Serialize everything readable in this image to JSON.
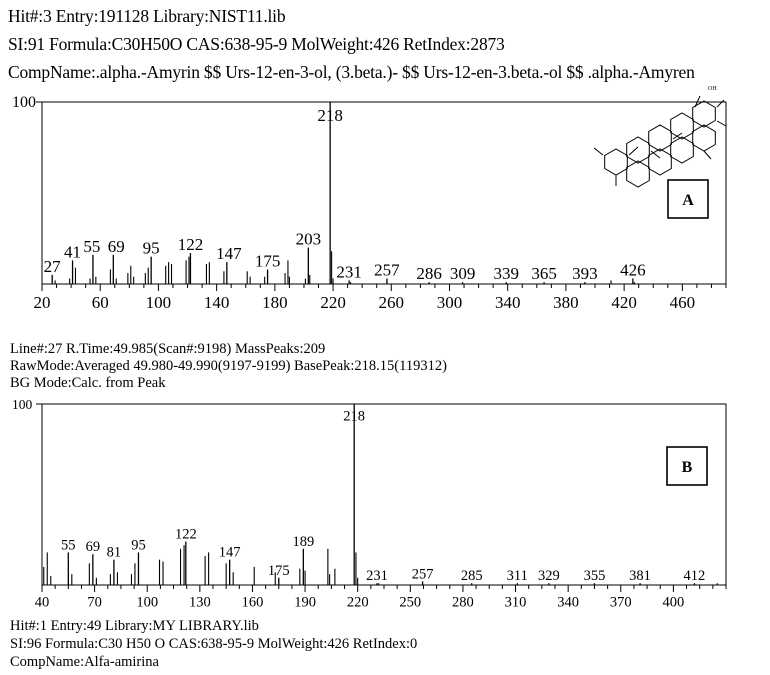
{
  "header_top": {
    "line1": "Hit#:3  Entry:191128  Library:NIST11.lib",
    "line2": "SI:91  Formula:C30H50O  CAS:638-95-9  MolWeight:426  RetIndex:2873",
    "line3": "CompName:.alpha.-Amyrin $$ Urs-12-en-3-ol, (3.beta.)- $$ Urs-12-en-3.beta.-ol $$ .alpha.-Amyren"
  },
  "header_mid": {
    "line1": "Line#:27   R.Time:49.985(Scan#:9198)   MassPeaks:209",
    "line2": "RawMode:Averaged 49.980-49.990(9197-9199) BasePeak:218.15(119312)",
    "line3": "BG Mode:Calc. from Peak"
  },
  "footer": {
    "line1": "Hit#:1  Entry:49  Library:MY LIBRARY.lib",
    "line2": "SI:96  Formula:C30 H50 O  CAS:638-95-9  MolWeight:426  RetIndex:0",
    "line3": "CompName:Alfa-amirina"
  },
  "chart_data": [
    {
      "type": "bar",
      "panel_label": "A",
      "structure_label": "OH",
      "x_ticks": [
        20,
        60,
        100,
        140,
        180,
        220,
        260,
        300,
        340,
        380,
        420,
        460
      ],
      "xlim": [
        20,
        490
      ],
      "ylim": [
        0,
        100
      ],
      "y_tick_label": "100",
      "labeled_peaks": [
        {
          "mz": 27,
          "intensity": 5,
          "label": "27"
        },
        {
          "mz": 41,
          "intensity": 13,
          "label": "41"
        },
        {
          "mz": 55,
          "intensity": 16,
          "label": "55"
        },
        {
          "mz": 69,
          "intensity": 16,
          "label": "69"
        },
        {
          "mz": 95,
          "intensity": 15,
          "label": "95"
        },
        {
          "mz": 122,
          "intensity": 17,
          "label": "122"
        },
        {
          "mz": 147,
          "intensity": 12,
          "label": "147"
        },
        {
          "mz": 175,
          "intensity": 8,
          "label": "175"
        },
        {
          "mz": 203,
          "intensity": 20,
          "label": "203"
        },
        {
          "mz": 218,
          "intensity": 100,
          "label": "218"
        },
        {
          "mz": 231,
          "intensity": 2,
          "label": "231"
        },
        {
          "mz": 257,
          "intensity": 3,
          "label": "257"
        },
        {
          "mz": 286,
          "intensity": 1,
          "label": "286"
        },
        {
          "mz": 309,
          "intensity": 1,
          "label": "309"
        },
        {
          "mz": 339,
          "intensity": 1,
          "label": "339"
        },
        {
          "mz": 365,
          "intensity": 1,
          "label": "365"
        },
        {
          "mz": 393,
          "intensity": 1,
          "label": "393"
        },
        {
          "mz": 426,
          "intensity": 3,
          "label": "426"
        }
      ],
      "minor_peaks": [
        {
          "mz": 29,
          "intensity": 2
        },
        {
          "mz": 39,
          "intensity": 3
        },
        {
          "mz": 43,
          "intensity": 9
        },
        {
          "mz": 53,
          "intensity": 3
        },
        {
          "mz": 57,
          "intensity": 4
        },
        {
          "mz": 67,
          "intensity": 8
        },
        {
          "mz": 71,
          "intensity": 3
        },
        {
          "mz": 79,
          "intensity": 6
        },
        {
          "mz": 81,
          "intensity": 10
        },
        {
          "mz": 83,
          "intensity": 4
        },
        {
          "mz": 91,
          "intensity": 6
        },
        {
          "mz": 93,
          "intensity": 9
        },
        {
          "mz": 105,
          "intensity": 10
        },
        {
          "mz": 107,
          "intensity": 12
        },
        {
          "mz": 109,
          "intensity": 11
        },
        {
          "mz": 119,
          "intensity": 13
        },
        {
          "mz": 121,
          "intensity": 15
        },
        {
          "mz": 133,
          "intensity": 11
        },
        {
          "mz": 135,
          "intensity": 12
        },
        {
          "mz": 145,
          "intensity": 7
        },
        {
          "mz": 161,
          "intensity": 7
        },
        {
          "mz": 163,
          "intensity": 4
        },
        {
          "mz": 173,
          "intensity": 4
        },
        {
          "mz": 187,
          "intensity": 6
        },
        {
          "mz": 189,
          "intensity": 13
        },
        {
          "mz": 190,
          "intensity": 4
        },
        {
          "mz": 201,
          "intensity": 3
        },
        {
          "mz": 204,
          "intensity": 5
        },
        {
          "mz": 219,
          "intensity": 18
        },
        {
          "mz": 220,
          "intensity": 3
        },
        {
          "mz": 232,
          "intensity": 1
        },
        {
          "mz": 411,
          "intensity": 2
        },
        {
          "mz": 427,
          "intensity": 1
        }
      ]
    },
    {
      "type": "bar",
      "panel_label": "B",
      "x_ticks": [
        40,
        70,
        100,
        130,
        160,
        190,
        220,
        250,
        280,
        310,
        340,
        370,
        400
      ],
      "xlim": [
        40,
        430
      ],
      "ylim": [
        0,
        100
      ],
      "y_tick_label": "100",
      "labeled_peaks": [
        {
          "mz": 55,
          "intensity": 18,
          "label": "55"
        },
        {
          "mz": 69,
          "intensity": 17,
          "label": "69"
        },
        {
          "mz": 81,
          "intensity": 14,
          "label": "81"
        },
        {
          "mz": 95,
          "intensity": 18,
          "label": "95"
        },
        {
          "mz": 122,
          "intensity": 24,
          "label": "122"
        },
        {
          "mz": 147,
          "intensity": 14,
          "label": "147"
        },
        {
          "mz": 175,
          "intensity": 4,
          "label": "175"
        },
        {
          "mz": 189,
          "intensity": 20,
          "label": "189"
        },
        {
          "mz": 218,
          "intensity": 100,
          "label": "218"
        },
        {
          "mz": 231,
          "intensity": 1,
          "label": "231"
        },
        {
          "mz": 257,
          "intensity": 2,
          "label": "257"
        },
        {
          "mz": 285,
          "intensity": 1,
          "label": "285"
        },
        {
          "mz": 311,
          "intensity": 1,
          "label": "311"
        },
        {
          "mz": 329,
          "intensity": 1,
          "label": "329"
        },
        {
          "mz": 355,
          "intensity": 1,
          "label": "355"
        },
        {
          "mz": 381,
          "intensity": 1,
          "label": "381"
        },
        {
          "mz": 412,
          "intensity": 1,
          "label": "412"
        }
      ],
      "minor_peaks": [
        {
          "mz": 41,
          "intensity": 10
        },
        {
          "mz": 43,
          "intensity": 18
        },
        {
          "mz": 45,
          "intensity": 5
        },
        {
          "mz": 57,
          "intensity": 6
        },
        {
          "mz": 67,
          "intensity": 12
        },
        {
          "mz": 71,
          "intensity": 4
        },
        {
          "mz": 79,
          "intensity": 6
        },
        {
          "mz": 83,
          "intensity": 7
        },
        {
          "mz": 91,
          "intensity": 6
        },
        {
          "mz": 93,
          "intensity": 12
        },
        {
          "mz": 107,
          "intensity": 14
        },
        {
          "mz": 109,
          "intensity": 13
        },
        {
          "mz": 119,
          "intensity": 20
        },
        {
          "mz": 121,
          "intensity": 22
        },
        {
          "mz": 133,
          "intensity": 16
        },
        {
          "mz": 135,
          "intensity": 18
        },
        {
          "mz": 145,
          "intensity": 12
        },
        {
          "mz": 149,
          "intensity": 7
        },
        {
          "mz": 161,
          "intensity": 10
        },
        {
          "mz": 173,
          "intensity": 7
        },
        {
          "mz": 187,
          "intensity": 9
        },
        {
          "mz": 190,
          "intensity": 8
        },
        {
          "mz": 203,
          "intensity": 20
        },
        {
          "mz": 204,
          "intensity": 6
        },
        {
          "mz": 207,
          "intensity": 9
        },
        {
          "mz": 219,
          "intensity": 18
        },
        {
          "mz": 220,
          "intensity": 4
        },
        {
          "mz": 232,
          "intensity": 1
        },
        {
          "mz": 425,
          "intensity": 1
        }
      ]
    }
  ]
}
